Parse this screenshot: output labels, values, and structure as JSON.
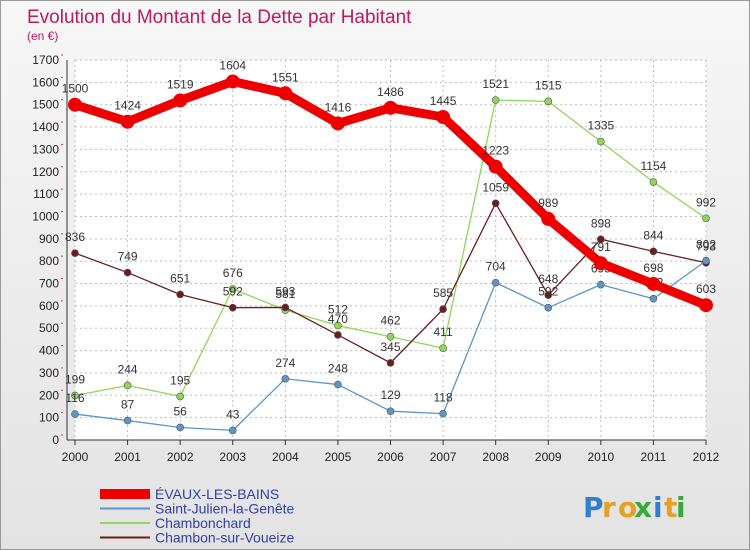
{
  "chart_data": {
    "type": "line",
    "title": "Evolution du Montant de la Dette par Habitant",
    "subtitle": "(en €)",
    "xlabel": "",
    "ylabel": "",
    "categories": [
      "2000",
      "2001",
      "2002",
      "2003",
      "2004",
      "2005",
      "2006",
      "2007",
      "2008",
      "2009",
      "2010",
      "2011",
      "2012"
    ],
    "ylim": [
      0,
      1700
    ],
    "yticks": [
      0,
      100,
      200,
      300,
      400,
      500,
      600,
      700,
      800,
      900,
      1000,
      1100,
      1200,
      1300,
      1400,
      1500,
      1600,
      1700
    ],
    "grid": true,
    "legend_position": "bottom-left",
    "series": [
      {
        "name": "ÉVAUX-LES-BAINS",
        "color": "#ee0000",
        "values": [
          1500,
          1424,
          1519,
          1604,
          1551,
          1416,
          1486,
          1445,
          1223,
          989,
          791,
          698,
          603
        ]
      },
      {
        "name": "Saint-Julien-la-Genête",
        "color": "#5b96c9",
        "values": [
          116,
          87,
          56,
          43,
          274,
          248,
          129,
          118,
          704,
          592,
          695,
          632,
          802
        ]
      },
      {
        "name": "Chambonchard",
        "color": "#8fd65a",
        "values": [
          199,
          244,
          195,
          676,
          581,
          512,
          462,
          411,
          1521,
          1515,
          1335,
          1154,
          992
        ]
      },
      {
        "name": "Chambon-sur-Voueize",
        "color": "#6b1e1e",
        "values": [
          836,
          749,
          651,
          592,
          593,
          470,
          345,
          585,
          1059,
          648,
          898,
          844,
          793
        ]
      }
    ]
  },
  "logo": {
    "letters": [
      "P",
      "r",
      "o",
      "x",
      "i",
      "t",
      "i"
    ],
    "colors": [
      "#2f7fd0",
      "#e8a020",
      "#e8a020",
      "#3aa83a",
      "#2f7fd0",
      "#e8a020",
      "#3aa83a"
    ]
  }
}
